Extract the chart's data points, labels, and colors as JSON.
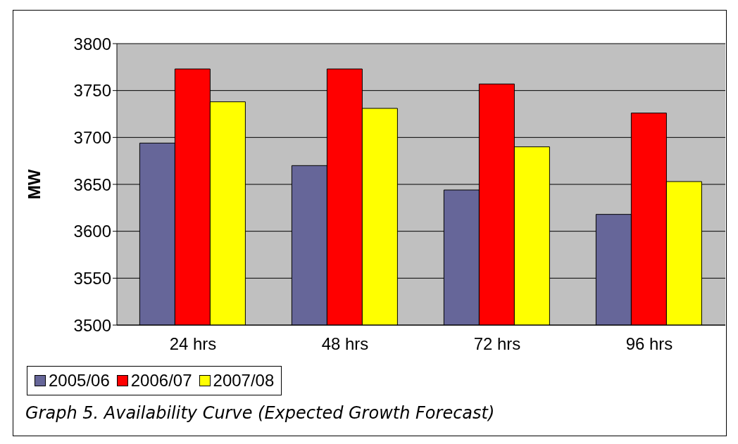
{
  "chart_data": {
    "type": "bar",
    "ylabel": "MW",
    "categories": [
      "24 hrs",
      "48 hrs",
      "72 hrs",
      "96 hrs"
    ],
    "series": [
      {
        "name": "2005/06",
        "color": "#666699",
        "values": [
          3694,
          3670,
          3644,
          3618
        ]
      },
      {
        "name": "2006/07",
        "color": "#ff0000",
        "values": [
          3773,
          3773,
          3757,
          3726
        ]
      },
      {
        "name": "2007/08",
        "color": "#ffff00",
        "values": [
          3738,
          3731,
          3690,
          3653
        ]
      }
    ],
    "ylim": [
      3500,
      3800
    ],
    "yticks": [
      3500,
      3550,
      3600,
      3650,
      3700,
      3750,
      3800
    ],
    "grid": "y",
    "legend": "bottom",
    "annotations": [
      "Graph 5. Availability Curve (Expected Growth Forecast)"
    ]
  }
}
